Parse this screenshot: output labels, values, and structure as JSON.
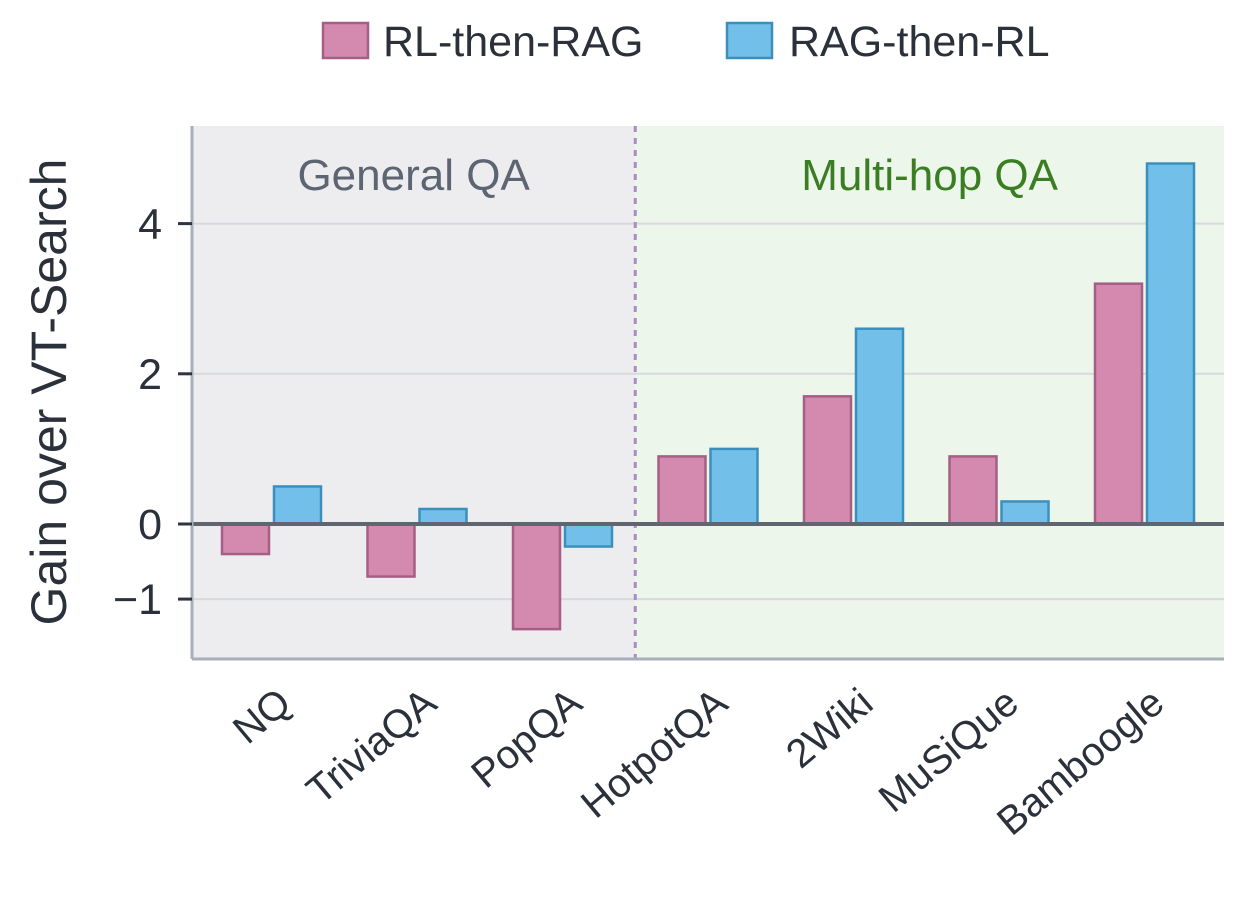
{
  "chart_data": {
    "type": "bar",
    "title": "",
    "xlabel": "",
    "ylabel": "Gain over VT-Search",
    "categories": [
      "NQ",
      "TriviaQA",
      "PopQA",
      "HotpotQA",
      "2Wiki",
      "MuSiQue",
      "Bamboogle"
    ],
    "series": [
      {
        "name": "RL-then-RAG",
        "values": [
          -0.4,
          -0.7,
          -1.4,
          0.9,
          1.7,
          0.9,
          3.2
        ],
        "fill": "#d48aae",
        "stroke": "#a55f85"
      },
      {
        "name": "RAG-then-RL",
        "values": [
          0.5,
          0.2,
          -0.3,
          1.0,
          2.6,
          0.3,
          4.8
        ],
        "fill": "#72c0ea",
        "stroke": "#3a8fbd"
      }
    ],
    "yticks": [
      -1,
      0,
      2,
      4
    ],
    "ytick_labels": [
      "−1",
      "0",
      "2",
      "4"
    ],
    "ylim": [
      -1.8,
      5.3
    ],
    "legend_position": "top-center",
    "grid": true,
    "regions": [
      {
        "label": "General QA",
        "categories": [
          "NQ",
          "TriviaQA",
          "PopQA"
        ],
        "background": "#ededf0",
        "text_color": "#5e6572"
      },
      {
        "label": "Multi-hop QA",
        "categories": [
          "HotpotQA",
          "2Wiki",
          "MuSiQue",
          "Bamboogle"
        ],
        "background": "#ecf6ea",
        "text_color": "#3a7d22"
      }
    ],
    "divider_color": "#a98bc6",
    "zero_line_color": "#5f6670"
  }
}
